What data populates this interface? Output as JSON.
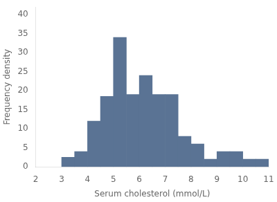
{
  "chart_data": {
    "type": "histogram",
    "xlabel": "Serum cholesterol (mmol/L)",
    "ylabel": "Frequency density",
    "bins": [
      3.0,
      3.5,
      4.0,
      4.5,
      5.0,
      5.5,
      6.0,
      6.5,
      7.0,
      7.5,
      8.0,
      8.5,
      9.0,
      9.5,
      10.0,
      10.5,
      11.0
    ],
    "values": [
      2.5,
      4.0,
      12.0,
      18.5,
      34.0,
      19.0,
      24.0,
      19.0,
      19.0,
      8.0,
      6.0,
      2.0,
      4.0,
      4.0,
      2.0,
      2.0
    ],
    "color": "#5a7394",
    "xlim": [
      2,
      11
    ],
    "ylim": [
      0,
      42
    ],
    "xticks": [
      2,
      3,
      4,
      5,
      6,
      7,
      8,
      9,
      10,
      11
    ],
    "yticks": [
      0,
      5,
      10,
      15,
      20,
      25,
      30,
      35,
      40
    ],
    "grid": false
  }
}
